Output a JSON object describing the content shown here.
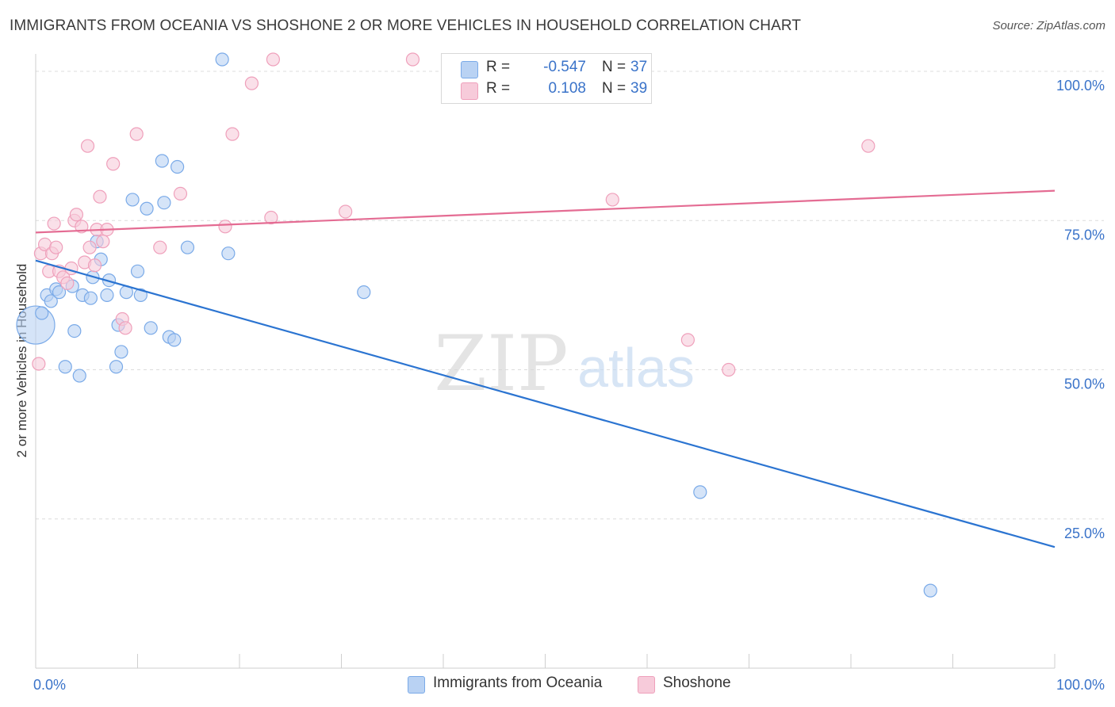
{
  "chart_data": {
    "type": "scatter",
    "title": "IMMIGRANTS FROM OCEANIA VS SHOSHONE 2 OR MORE VEHICLES IN HOUSEHOLD CORRELATION CHART",
    "source": "Source: ZipAtlas.com",
    "xlabel": "",
    "ylabel": "2 or more Vehicles in Household",
    "xlim": [
      0,
      100
    ],
    "ylim": [
      0,
      102
    ],
    "x_tick_labels": [
      {
        "value": 0,
        "label": "0.0%"
      },
      {
        "value": 100,
        "label": "100.0%"
      }
    ],
    "y_tick_labels": [
      {
        "value": 25,
        "label": "25.0%"
      },
      {
        "value": 50,
        "label": "50.0%"
      },
      {
        "value": 75,
        "label": "75.0%"
      },
      {
        "value": 100,
        "label": "100.0%"
      }
    ],
    "watermark": {
      "zip": "ZIP",
      "atlas": "atlas"
    },
    "series": [
      {
        "name": "Immigrants from Oceania",
        "color": "#7aaae8",
        "fill": "#b9d2f3",
        "line_color": "#2b74d1",
        "R": "-0.547",
        "N": "37",
        "trend": {
          "x0": 0,
          "y0": 68.3,
          "x1": 100,
          "y1": 20.3
        },
        "points": [
          {
            "x": 0.0,
            "y": 57.5,
            "big": true
          },
          {
            "x": 0.6,
            "y": 59.5
          },
          {
            "x": 1.1,
            "y": 62.5
          },
          {
            "x": 1.5,
            "y": 61.5
          },
          {
            "x": 2.0,
            "y": 63.5
          },
          {
            "x": 2.3,
            "y": 63.0
          },
          {
            "x": 2.9,
            "y": 50.5
          },
          {
            "x": 3.6,
            "y": 64.0
          },
          {
            "x": 3.8,
            "y": 56.5
          },
          {
            "x": 4.3,
            "y": 49.0
          },
          {
            "x": 4.6,
            "y": 62.5
          },
          {
            "x": 5.4,
            "y": 62.0
          },
          {
            "x": 5.6,
            "y": 65.5
          },
          {
            "x": 6.0,
            "y": 71.5
          },
          {
            "x": 6.4,
            "y": 68.5
          },
          {
            "x": 7.0,
            "y": 62.5
          },
          {
            "x": 7.2,
            "y": 65.0
          },
          {
            "x": 7.9,
            "y": 50.5
          },
          {
            "x": 8.1,
            "y": 57.5
          },
          {
            "x": 8.4,
            "y": 53.0
          },
          {
            "x": 8.9,
            "y": 63.0
          },
          {
            "x": 9.5,
            "y": 78.5
          },
          {
            "x": 10.0,
            "y": 66.5
          },
          {
            "x": 10.3,
            "y": 62.5
          },
          {
            "x": 10.9,
            "y": 77.0
          },
          {
            "x": 11.3,
            "y": 57.0
          },
          {
            "x": 12.4,
            "y": 85.0
          },
          {
            "x": 12.6,
            "y": 78.0
          },
          {
            "x": 13.1,
            "y": 55.5
          },
          {
            "x": 13.6,
            "y": 55.0
          },
          {
            "x": 13.9,
            "y": 84.0
          },
          {
            "x": 14.9,
            "y": 70.5
          },
          {
            "x": 18.3,
            "y": 102.0
          },
          {
            "x": 18.9,
            "y": 69.5
          },
          {
            "x": 32.2,
            "y": 63.0
          },
          {
            "x": 65.2,
            "y": 29.5
          },
          {
            "x": 87.8,
            "y": 13.0
          }
        ]
      },
      {
        "name": "Shoshone",
        "color": "#efa0bb",
        "fill": "#f7cbda",
        "line_color": "#e46c93",
        "R": "0.108",
        "N": "39",
        "trend": {
          "x0": 0,
          "y0": 73.0,
          "x1": 100,
          "y1": 80.0
        },
        "points": [
          {
            "x": 0.3,
            "y": 51.0
          },
          {
            "x": 0.5,
            "y": 69.5
          },
          {
            "x": 0.9,
            "y": 71.0
          },
          {
            "x": 1.3,
            "y": 66.5
          },
          {
            "x": 1.6,
            "y": 69.5
          },
          {
            "x": 1.8,
            "y": 74.5
          },
          {
            "x": 2.0,
            "y": 70.5
          },
          {
            "x": 2.3,
            "y": 66.5
          },
          {
            "x": 2.7,
            "y": 65.5
          },
          {
            "x": 3.1,
            "y": 64.5
          },
          {
            "x": 3.5,
            "y": 67.0
          },
          {
            "x": 3.8,
            "y": 75.0
          },
          {
            "x": 4.0,
            "y": 76.0
          },
          {
            "x": 4.5,
            "y": 74.0
          },
          {
            "x": 4.8,
            "y": 68.0
          },
          {
            "x": 5.1,
            "y": 87.5
          },
          {
            "x": 5.3,
            "y": 70.5
          },
          {
            "x": 5.8,
            "y": 67.5
          },
          {
            "x": 6.0,
            "y": 73.5
          },
          {
            "x": 6.3,
            "y": 79.0
          },
          {
            "x": 6.6,
            "y": 71.5
          },
          {
            "x": 7.0,
            "y": 73.5
          },
          {
            "x": 7.6,
            "y": 84.5
          },
          {
            "x": 8.5,
            "y": 58.5
          },
          {
            "x": 8.8,
            "y": 57.0
          },
          {
            "x": 9.9,
            "y": 89.5
          },
          {
            "x": 12.2,
            "y": 70.5
          },
          {
            "x": 14.2,
            "y": 79.5
          },
          {
            "x": 18.6,
            "y": 74.0
          },
          {
            "x": 19.3,
            "y": 89.5
          },
          {
            "x": 21.2,
            "y": 98.0
          },
          {
            "x": 23.1,
            "y": 75.5
          },
          {
            "x": 23.3,
            "y": 102.0
          },
          {
            "x": 30.4,
            "y": 76.5
          },
          {
            "x": 37.0,
            "y": 102.0
          },
          {
            "x": 56.6,
            "y": 78.5
          },
          {
            "x": 64.0,
            "y": 55.0
          },
          {
            "x": 68.0,
            "y": 50.0
          },
          {
            "x": 81.7,
            "y": 87.5
          }
        ]
      }
    ]
  }
}
